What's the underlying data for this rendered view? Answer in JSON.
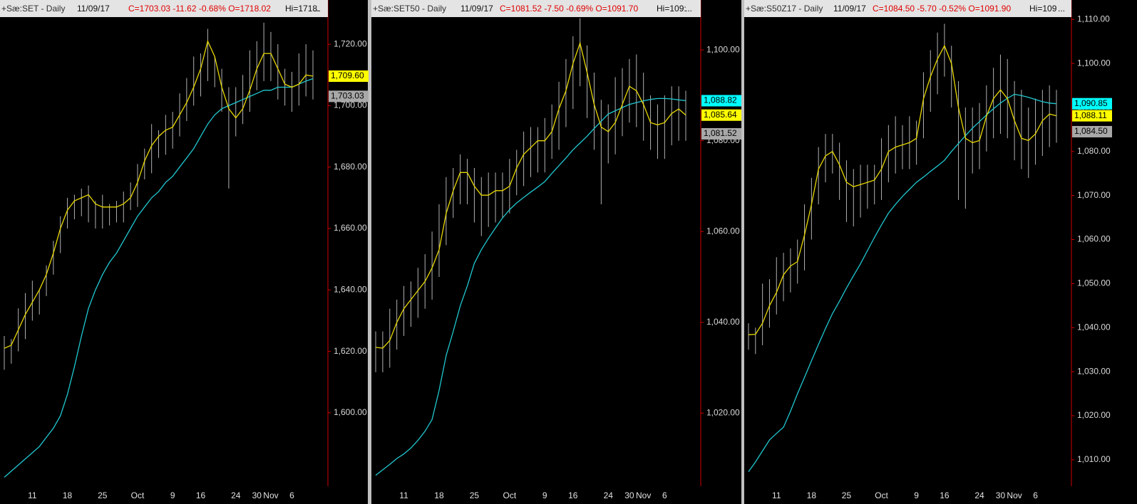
{
  "chart_data": [
    {
      "type": "ohlc",
      "symbol": "+Sæ:SET - Daily",
      "date": "11/09/17",
      "quote": "C=1703.03  -11.62  -0.68%  O=1718.02",
      "hi": "Hi=1718.",
      "more": "...",
      "categories": [
        null,
        null,
        null,
        null,
        "11",
        null,
        null,
        null,
        null,
        "18",
        null,
        null,
        null,
        null,
        "25",
        null,
        null,
        null,
        null,
        "Oct",
        null,
        null,
        null,
        null,
        "9",
        null,
        null,
        null,
        "16",
        null,
        null,
        null,
        null,
        "24",
        null,
        null,
        "30",
        null,
        "Nov",
        null,
        null,
        "6",
        null,
        null,
        null
      ],
      "ylim": [
        1576.1,
        1734.4
      ],
      "yticks": [
        {
          "value": 1600,
          "label": "1,600.00"
        },
        {
          "value": 1620,
          "label": "1,620.00"
        },
        {
          "value": 1640,
          "label": "1,640.00"
        },
        {
          "value": 1660,
          "label": "1,660.00"
        },
        {
          "value": 1680,
          "label": "1,680.00"
        },
        {
          "value": 1700,
          "label": "1,700.00"
        },
        {
          "value": 1720,
          "label": "1,720.00"
        }
      ],
      "bar_color": "#b0b0b0",
      "high": [
        1625,
        1624,
        1634,
        1639,
        1643,
        1640,
        1648,
        1656,
        1664,
        1670,
        1671,
        1673,
        1674,
        1669,
        1671,
        1668,
        1669,
        1672,
        1675,
        1681,
        1686,
        1694,
        1692,
        1697,
        1698,
        1704,
        1709,
        1716,
        1717,
        1725,
        1716,
        1712,
        1706,
        1706,
        1710,
        1718,
        1721,
        1727,
        1724,
        1720,
        1712,
        1711,
        1717,
        1720,
        1718
      ],
      "low": [
        1614,
        1616,
        1620,
        1624,
        1630,
        1632,
        1638,
        1645,
        1652,
        1660,
        1663,
        1664,
        1662,
        1660,
        1660,
        1661,
        1662,
        1662,
        1666,
        1667,
        1676,
        1678,
        1683,
        1684,
        1686,
        1690,
        1695,
        1700,
        1703,
        1708,
        1706,
        1698,
        1673,
        1690,
        1694,
        1698,
        1705,
        1708,
        1708,
        1702,
        1700,
        1698,
        1700,
        1703,
        1702
      ],
      "series": [
        {
          "color": "#20c8d0",
          "values": [
            1579,
            1581,
            1583,
            1585,
            1587,
            1589,
            1592,
            1595,
            1599,
            1606,
            1615,
            1625,
            1634,
            1640,
            1645,
            1649,
            1652,
            1656,
            1660,
            1664,
            1667,
            1670,
            1672,
            1675,
            1677,
            1680,
            1683,
            1686,
            1690,
            1694,
            1697,
            1699,
            1700,
            1701,
            1702,
            1703,
            1704,
            1705,
            1705,
            1706,
            1706,
            1706,
            1707,
            1708,
            1708.8
          ]
        },
        {
          "color": "#e8d800",
          "values": [
            1621,
            1622,
            1627,
            1632,
            1636,
            1640,
            1645,
            1652,
            1660,
            1666,
            1669,
            1670,
            1671,
            1668,
            1667,
            1667,
            1667,
            1668,
            1670,
            1675,
            1682,
            1687,
            1690,
            1692,
            1693,
            1697,
            1701,
            1706,
            1712,
            1721,
            1716,
            1706,
            1699,
            1696,
            1699,
            1705,
            1712,
            1717,
            1717,
            1712,
            1707,
            1706,
            1707,
            1710,
            1709.6
          ]
        }
      ],
      "price_labels": [
        {
          "value": 1709.6,
          "label": "1,709.60",
          "color": "#ffff00"
        },
        {
          "value": 1703.03,
          "label": "1,703.03",
          "color": "#a8a8a8"
        }
      ]
    },
    {
      "type": "ohlc",
      "symbol": "+Sæ:SET50 - Daily",
      "date": "11/09/17",
      "quote": "C=1081.52  -7.50  -0.69%  O=1091.70",
      "hi": "Hi=109:",
      "more": "...",
      "categories": [
        null,
        null,
        null,
        null,
        "11",
        null,
        null,
        null,
        null,
        "18",
        null,
        null,
        null,
        null,
        "25",
        null,
        null,
        null,
        null,
        "Oct",
        null,
        null,
        null,
        null,
        "9",
        null,
        null,
        null,
        "16",
        null,
        null,
        null,
        null,
        "24",
        null,
        null,
        "30",
        null,
        "Nov",
        null,
        null,
        "6",
        null,
        null,
        null
      ],
      "ylim": [
        1003.9,
        1111
      ],
      "yticks": [
        {
          "value": 1020,
          "label": "1,020.00"
        },
        {
          "value": 1040,
          "label": "1,040.00"
        },
        {
          "value": 1060,
          "label": "1,060.00"
        },
        {
          "value": 1080,
          "label": "1,080.00"
        },
        {
          "value": 1100,
          "label": "1,100.00"
        }
      ],
      "bar_color": "#b0b0b0",
      "high": [
        1038,
        1038,
        1043,
        1045,
        1048,
        1049,
        1052,
        1055,
        1060,
        1066,
        1072,
        1074,
        1077,
        1076,
        1074,
        1072,
        1073,
        1073,
        1073,
        1076,
        1078,
        1082,
        1083,
        1083,
        1085,
        1088,
        1093,
        1098,
        1103,
        1107,
        1101,
        1095,
        1089,
        1088,
        1094,
        1096,
        1098,
        1099,
        1095,
        1090,
        1088,
        1090,
        1092,
        1092,
        1091
      ],
      "low": [
        1029,
        1029,
        1030,
        1034,
        1037,
        1039,
        1041,
        1043,
        1045,
        1050,
        1057,
        1063,
        1066,
        1066,
        1062,
        1059,
        1061,
        1062,
        1063,
        1064,
        1068,
        1070,
        1072,
        1073,
        1073,
        1076,
        1078,
        1083,
        1087,
        1092,
        1085,
        1078,
        1066,
        1075,
        1077,
        1081,
        1084,
        1083,
        1080,
        1078,
        1076,
        1076,
        1079,
        1080,
        1080
      ],
      "series": [
        {
          "color": "#20c8d0",
          "values": [
            1006.3,
            1007.5,
            1008.7,
            1010,
            1011,
            1012.3,
            1014,
            1016,
            1018.6,
            1025,
            1032.7,
            1038,
            1043.6,
            1048,
            1053,
            1056,
            1058.5,
            1060.8,
            1063,
            1064.8,
            1066.3,
            1067.5,
            1068.7,
            1069.8,
            1071,
            1072.8,
            1074.5,
            1076.2,
            1078,
            1079.5,
            1081,
            1082.7,
            1084.3,
            1085.9,
            1086.6,
            1087.3,
            1088,
            1088.4,
            1088.8,
            1089.1,
            1089.3,
            1089.3,
            1089.2,
            1089,
            1088.82
          ]
        },
        {
          "color": "#e8d800",
          "values": [
            1034.5,
            1034.3,
            1036,
            1040,
            1043,
            1045,
            1047,
            1049,
            1052,
            1056,
            1064,
            1069,
            1073,
            1073,
            1070,
            1068,
            1068,
            1069,
            1069,
            1070,
            1074,
            1077,
            1078.5,
            1080,
            1080,
            1082,
            1087,
            1091,
            1097,
            1101.5,
            1095,
            1088,
            1083,
            1082,
            1084,
            1088,
            1092,
            1091,
            1088,
            1084,
            1083.5,
            1084,
            1086,
            1087,
            1085.64
          ]
        }
      ],
      "price_labels": [
        {
          "value": 1088.82,
          "label": "1,088.82",
          "color": "#00ffff"
        },
        {
          "value": 1085.64,
          "label": "1,085.64",
          "color": "#ffff00"
        },
        {
          "value": 1081.52,
          "label": "1,081.52",
          "color": "#a8a8a8"
        }
      ]
    },
    {
      "type": "ohlc",
      "symbol": "+Sæ:S50Z17 - Daily",
      "date": "11/09/17",
      "quote": "C=1084.50  -5.70  -0.52%  O=1091.90",
      "hi": "Hi=109",
      "more": "...",
      "categories": [
        null,
        null,
        null,
        null,
        "11",
        null,
        null,
        null,
        null,
        "18",
        null,
        null,
        null,
        null,
        "25",
        null,
        null,
        null,
        null,
        "Oct",
        null,
        null,
        null,
        null,
        "9",
        null,
        null,
        null,
        "16",
        null,
        null,
        null,
        null,
        "24",
        null,
        null,
        "30",
        null,
        "Nov",
        null,
        null,
        "6",
        null,
        null,
        null
      ],
      "ylim": [
        1004,
        1114.4
      ],
      "yticks": [
        {
          "value": 1010,
          "label": "1,010.00"
        },
        {
          "value": 1020,
          "label": "1,020.00"
        },
        {
          "value": 1030,
          "label": "1,030.00"
        },
        {
          "value": 1040,
          "label": "1,040.00"
        },
        {
          "value": 1050,
          "label": "1,050.00"
        },
        {
          "value": 1060,
          "label": "1,060.00"
        },
        {
          "value": 1070,
          "label": "1,070.00"
        },
        {
          "value": 1080,
          "label": "1,080.00"
        },
        {
          "value": 1090,
          "label": "1,090.00"
        },
        {
          "value": 1100,
          "label": "1,100.00"
        },
        {
          "value": 1110,
          "label": "1,110.00"
        }
      ],
      "bar_color": "#b0b0b0",
      "high": [
        1041,
        1040,
        1050,
        1051,
        1056,
        1057,
        1058,
        1060,
        1068,
        1074,
        1081,
        1084,
        1084,
        1082,
        1078,
        1076,
        1077,
        1077,
        1077,
        1083,
        1086,
        1088,
        1086,
        1088,
        1087,
        1098,
        1103,
        1107,
        1109,
        1104,
        1096,
        1090,
        1090,
        1091,
        1095,
        1099,
        1102,
        1101,
        1096,
        1094,
        1090,
        1092,
        1094,
        1095,
        1094
      ],
      "low": [
        1035,
        1034,
        1036,
        1040,
        1043,
        1046,
        1048,
        1050,
        1053,
        1060,
        1068,
        1073,
        1075,
        1069,
        1064,
        1063,
        1065,
        1067,
        1068,
        1069,
        1073,
        1075,
        1076,
        1076,
        1077,
        1083,
        1089,
        1093,
        1097,
        1090,
        1069,
        1067,
        1075,
        1076,
        1080,
        1083,
        1084,
        1083,
        1078,
        1076,
        1074,
        1077,
        1079,
        1081,
        1082
      ],
      "series": [
        {
          "color": "#20c8d0",
          "values": [
            1007.3,
            1009.5,
            1012,
            1014.5,
            1016,
            1017.4,
            1021,
            1025,
            1028.7,
            1032.5,
            1036.2,
            1039.8,
            1043.2,
            1046,
            1049,
            1051.8,
            1054.5,
            1057.5,
            1060.5,
            1063.3,
            1066,
            1068,
            1069.8,
            1071.4,
            1073,
            1074.2,
            1075.5,
            1076.7,
            1078,
            1080,
            1081.8,
            1083.6,
            1085.3,
            1086.8,
            1088.3,
            1089.7,
            1091,
            1092.1,
            1093,
            1092.7,
            1092.3,
            1091.8,
            1091.3,
            1091,
            1090.85
          ]
        },
        {
          "color": "#e8d800",
          "values": [
            1038.4,
            1038.5,
            1041,
            1045,
            1048,
            1052,
            1054,
            1055,
            1061,
            1068,
            1076,
            1079,
            1080,
            1077,
            1073,
            1072,
            1072.5,
            1073,
            1073.5,
            1076,
            1080,
            1081,
            1081.5,
            1082,
            1083,
            1092,
            1097,
            1101,
            1104,
            1100,
            1090,
            1083,
            1082,
            1082.5,
            1088,
            1092,
            1094,
            1092,
            1087,
            1083,
            1082.5,
            1084,
            1087,
            1088.5,
            1088.11
          ]
        }
      ],
      "price_labels": [
        {
          "value": 1090.85,
          "label": "1,090.85",
          "color": "#00ffff"
        },
        {
          "value": 1088.11,
          "label": "1,088.11",
          "color": "#ffff00"
        },
        {
          "value": 1084.5,
          "label": "1,084.50",
          "color": "#a8a8a8"
        }
      ]
    }
  ]
}
